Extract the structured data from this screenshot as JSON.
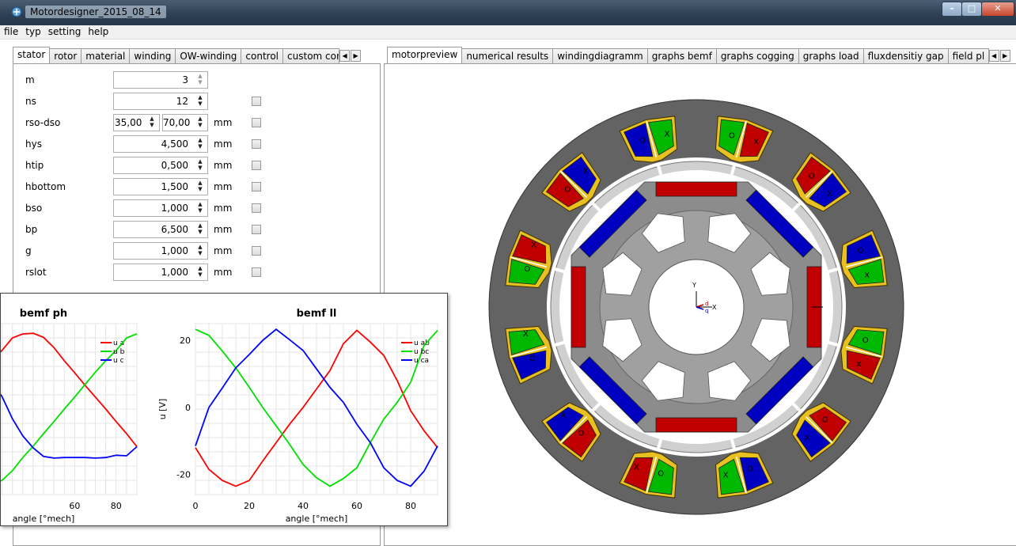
{
  "window": {
    "title": "Motordesigner_2015_08_14"
  },
  "menu": [
    "file",
    "typ",
    "setting",
    "help"
  ],
  "left_tabs": [
    "stator",
    "rotor",
    "material",
    "winding",
    "OW-winding",
    "control",
    "custom cont"
  ],
  "right_tabs": [
    "motorpreview",
    "numerical results",
    "windingdiagramm",
    "graphs bemf",
    "graphs cogging",
    "graphs load",
    "fluxdensitiy gap",
    "field pl"
  ],
  "params": [
    {
      "label": "m",
      "value": "3",
      "unit": "",
      "check": false
    },
    {
      "label": "ns",
      "value": "12",
      "unit": "",
      "check": true
    },
    {
      "label": "rso-dso",
      "value": "35,000",
      "value2": "70,000",
      "unit": "mm",
      "check": true
    },
    {
      "label": "hys",
      "value": "4,500",
      "unit": "mm",
      "check": true
    },
    {
      "label": "htip",
      "value": "0,500",
      "unit": "mm",
      "check": true
    },
    {
      "label": "hbottom",
      "value": "1,500",
      "unit": "mm",
      "check": true
    },
    {
      "label": "bso",
      "value": "1,000",
      "unit": "mm",
      "check": true
    },
    {
      "label": "bp",
      "value": "6,500",
      "unit": "mm",
      "check": true
    },
    {
      "label": "g",
      "value": "1,000",
      "unit": "mm",
      "check": true
    },
    {
      "label": "rslot",
      "value": "1,000",
      "unit": "mm",
      "check": true
    }
  ],
  "motor": {
    "axis_y": "Y",
    "axis_x": "X",
    "axis_d": "d",
    "axis_q": "q",
    "coil_x": "X",
    "coil_o": "O",
    "colors": {
      "red": "#c00000",
      "green": "#00b800",
      "blue": "#0000c0",
      "housing": "#636363",
      "core": "#8c8c8c",
      "gap": "#d0d0d0",
      "copper": "#e8c020"
    }
  },
  "chart_data": [
    {
      "type": "line",
      "title": "bemf ph",
      "xlabel": "angle [°mech]",
      "ylabel": "",
      "xlim": [
        0,
        90
      ],
      "ylim": [
        -15,
        15
      ],
      "x": [
        0,
        5,
        10,
        15,
        20,
        25,
        30,
        35,
        40,
        45,
        50,
        55,
        60,
        65,
        70,
        75,
        80,
        85,
        90
      ],
      "series": [
        {
          "name": "u a",
          "color": "#ff0000",
          "values": [
            0,
            2.2,
            4.3,
            6.6,
            8.4,
            10.3,
            12.5,
            13.2,
            13.3,
            12.6,
            10.8,
            8.5,
            6.4,
            4.2,
            2.1,
            0,
            -2.2,
            -4.3,
            -6.6
          ]
        },
        {
          "name": "u b",
          "color": "#00e000",
          "values": [
            -10.0,
            -11.6,
            -12.9,
            -13.3,
            -13.2,
            -12.5,
            -10.8,
            -8.5,
            -6.5,
            -4.3,
            -2.2,
            0,
            2.1,
            4.3,
            6.5,
            8.5,
            10.3,
            12.5,
            13.2
          ]
        },
        {
          "name": "u c",
          "color": "#0000ff",
          "values": [
            10.0,
            9.4,
            8.6,
            6.7,
            4.8,
            2.2,
            -1.7,
            -4.7,
            -6.8,
            -8.3,
            -8.6,
            -8.5,
            -8.5,
            -8.5,
            -8.6,
            -8.5,
            -8.1,
            -8.2,
            -6.6
          ]
        }
      ],
      "ticks_x": [
        "60",
        "80"
      ]
    },
    {
      "type": "line",
      "title": "bemf ll",
      "xlabel": "angle [°mech]",
      "ylabel": "u [V]",
      "xlim": [
        0,
        90
      ],
      "ylim": [
        -26,
        25
      ],
      "x": [
        0,
        5,
        10,
        15,
        20,
        25,
        30,
        35,
        40,
        45,
        50,
        55,
        60,
        65,
        70,
        75,
        80,
        85,
        90
      ],
      "series": [
        {
          "name": "u ab",
          "color": "#ff0000",
          "values": [
            -12,
            -18.5,
            -21.8,
            -23.5,
            -21.8,
            -16,
            -10.5,
            -5,
            0,
            5.5,
            11,
            19,
            23,
            19.5,
            15.5,
            8,
            -1,
            -7,
            -12
          ]
        },
        {
          "name": "u bc",
          "color": "#00e000",
          "values": [
            23.3,
            21.5,
            16.8,
            11.8,
            6,
            0,
            -5.5,
            -11,
            -17,
            -21,
            -23.5,
            -21.2,
            -18,
            -10.5,
            -3.5,
            1.5,
            7.5,
            18.5,
            23
          ]
        },
        {
          "name": "u ca",
          "color": "#0000ff",
          "values": [
            -11.5,
            0,
            5.8,
            11.8,
            15.8,
            20,
            23.3,
            20.2,
            17,
            11.5,
            6,
            1.5,
            -5,
            -10.5,
            -18,
            -21.8,
            -23.5,
            -19,
            -11.5
          ]
        }
      ],
      "ticks_x": [
        "0",
        "20",
        "40",
        "60",
        "80"
      ],
      "ticks_y": [
        "20",
        "0",
        "-20"
      ]
    }
  ]
}
